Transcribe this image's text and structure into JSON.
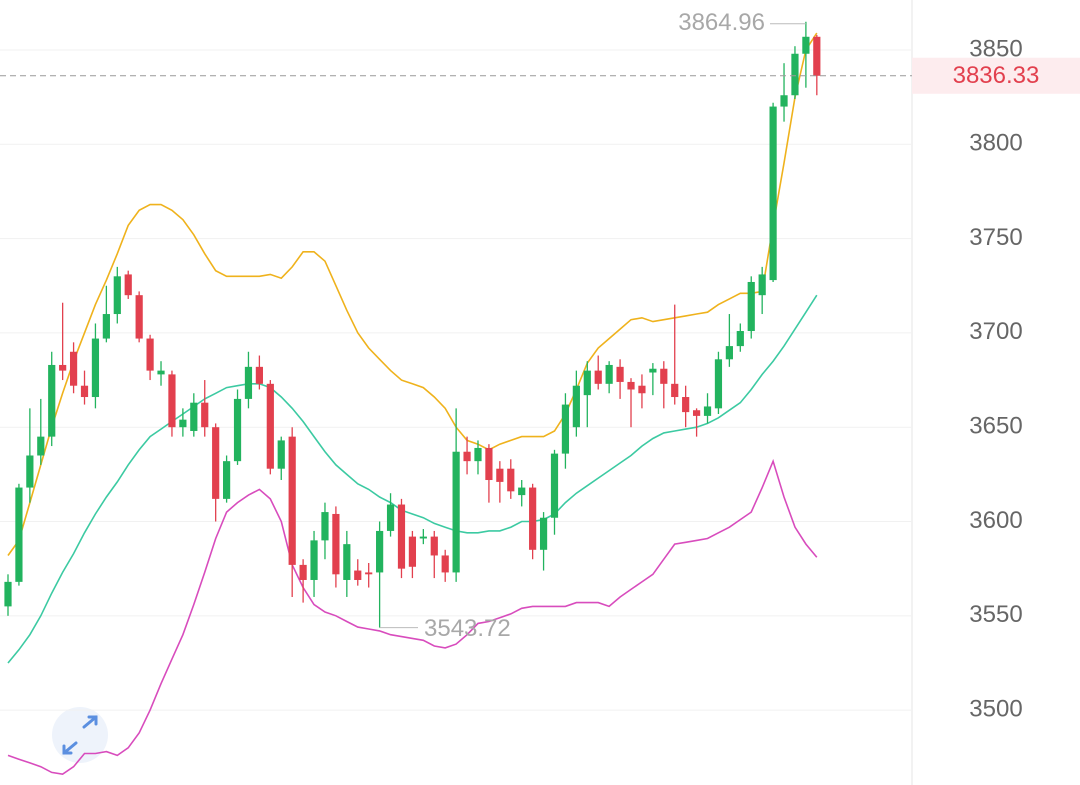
{
  "chart_data": {
    "type": "candlestick",
    "ylim": [
      3460.3,
      3876.5
    ],
    "yticks": [
      3500,
      3550,
      3600,
      3650,
      3700,
      3750,
      3800,
      3850
    ],
    "grid": true,
    "up_color": "#22b35e",
    "down_color": "#e2404e",
    "open": [
      3555,
      3568,
      3618,
      3635,
      3645,
      3683,
      3690,
      3672,
      3666,
      3697,
      3710,
      3731,
      3720,
      3697,
      3678,
      3678,
      3650,
      3648,
      3663,
      3650,
      3612,
      3632,
      3665,
      3682,
      3673,
      3628,
      3645,
      3577,
      3569,
      3590,
      3604,
      3569,
      3574,
      3573,
      3573,
      3595,
      3609,
      3592,
      3591,
      3592,
      3582,
      3573,
      3637,
      3632,
      3639,
      3628,
      3628,
      3614,
      3618,
      3585,
      3602,
      3636,
      3650,
      3667,
      3680,
      3673,
      3682,
      3674,
      3672,
      3679,
      3681,
      3673,
      3666,
      3659,
      3656,
      3660,
      3686,
      3693,
      3701,
      3720,
      3728,
      3820,
      3826,
      3848,
      3857
    ],
    "high": [
      3572,
      3620,
      3660,
      3665,
      3690,
      3716,
      3695,
      3680,
      3705,
      3725,
      3735,
      3733,
      3722,
      3699,
      3685,
      3680,
      3660,
      3668,
      3675,
      3652,
      3635,
      3670,
      3690,
      3688,
      3675,
      3645,
      3650,
      3580,
      3595,
      3610,
      3608,
      3595,
      3580,
      3578,
      3600,
      3615,
      3612,
      3595,
      3596,
      3595,
      3585,
      3660,
      3645,
      3643,
      3641,
      3632,
      3633,
      3622,
      3620,
      3605,
      3638,
      3668,
      3680,
      3685,
      3688,
      3685,
      3686,
      3676,
      3678,
      3684,
      3685,
      3715,
      3672,
      3660,
      3668,
      3690,
      3710,
      3705,
      3730,
      3735,
      3822,
      3843,
      3852,
      3864.96,
      3858
    ],
    "low": [
      3550,
      3566,
      3610,
      3630,
      3640,
      3675,
      3668,
      3662,
      3660,
      3695,
      3705,
      3718,
      3695,
      3675,
      3672,
      3645,
      3645,
      3645,
      3645,
      3600,
      3610,
      3630,
      3660,
      3670,
      3625,
      3622,
      3560,
      3557,
      3560,
      3580,
      3565,
      3560,
      3566,
      3565,
      3543.72,
      3592,
      3570,
      3570,
      3588,
      3570,
      3568,
      3568,
      3625,
      3625,
      3610,
      3610,
      3612,
      3608,
      3580,
      3574,
      3593,
      3628,
      3645,
      3650,
      3670,
      3668,
      3665,
      3650,
      3660,
      3667,
      3660,
      3662,
      3650,
      3645,
      3652,
      3657,
      3682,
      3690,
      3697,
      3710,
      3727,
      3812,
      3824,
      3830,
      3826
    ],
    "close": [
      3568,
      3618,
      3635,
      3645,
      3683,
      3680,
      3672,
      3666,
      3697,
      3710,
      3730,
      3720,
      3697,
      3680,
      3680,
      3650,
      3654,
      3663,
      3650,
      3612,
      3632,
      3665,
      3682,
      3673,
      3628,
      3643,
      3577,
      3569,
      3590,
      3605,
      3572,
      3588,
      3569,
      3572,
      3595,
      3609,
      3575,
      3576,
      3592,
      3582,
      3573,
      3637,
      3632,
      3639,
      3622,
      3621,
      3616,
      3618,
      3585,
      3602,
      3636,
      3662,
      3672,
      3680,
      3673,
      3683,
      3674,
      3670,
      3668,
      3681,
      3673,
      3666,
      3658,
      3656,
      3661,
      3686,
      3693,
      3701,
      3727,
      3731,
      3820,
      3826,
      3848,
      3857,
      3836.33
    ],
    "lines": [
      {
        "color": "#efb21c",
        "values": [
          3582,
          3590,
          3610,
          3630,
          3650,
          3668,
          3685,
          3700,
          3715,
          3728,
          3742,
          3757,
          3765,
          3768,
          3768,
          3765,
          3760,
          3752,
          3742,
          3733,
          3730,
          3730,
          3730,
          3730,
          3731,
          3729,
          3735,
          3743,
          3743,
          3738,
          3725,
          3712,
          3700,
          3692,
          3686,
          3680,
          3675,
          3673,
          3671,
          3666,
          3660,
          3650,
          3643,
          3641,
          3638,
          3641,
          3643,
          3645,
          3645,
          3645,
          3648,
          3657,
          3670,
          3684,
          3692,
          3697,
          3702,
          3707,
          3708,
          3706,
          3707,
          3708,
          3709,
          3710,
          3711,
          3715,
          3718,
          3721,
          3721,
          3722,
          3757,
          3790,
          3825,
          3850,
          3859
        ]
      },
      {
        "color": "#3ccaa2",
        "values": [
          3525,
          3532,
          3540,
          3550,
          3562,
          3573,
          3583,
          3594,
          3604,
          3613,
          3621,
          3630,
          3638,
          3645,
          3649,
          3653,
          3657,
          3661,
          3665,
          3668,
          3671,
          3672,
          3673,
          3673,
          3671,
          3666,
          3660,
          3653,
          3645,
          3637,
          3630,
          3625,
          3620,
          3617,
          3613,
          3610,
          3606,
          3604,
          3602,
          3599,
          3597,
          3595,
          3594,
          3594,
          3595,
          3595,
          3597,
          3600,
          3600,
          3601,
          3604,
          3610,
          3615,
          3619,
          3623,
          3627,
          3631,
          3635,
          3640,
          3644,
          3647,
          3648,
          3649,
          3650,
          3652,
          3655,
          3659,
          3663,
          3670,
          3678,
          3685,
          3693,
          3702,
          3711,
          3720
        ]
      },
      {
        "color": "#d84cbd",
        "values": [
          3476,
          3474,
          3472,
          3470,
          3467,
          3466,
          3470,
          3477,
          3477,
          3478,
          3476,
          3480,
          3488,
          3500,
          3514,
          3527,
          3540,
          3556,
          3573,
          3591,
          3605,
          3610,
          3614,
          3617,
          3612,
          3600,
          3577,
          3565,
          3556,
          3552,
          3550,
          3547,
          3544,
          3543,
          3542,
          3540,
          3539,
          3538,
          3537,
          3534,
          3533,
          3535,
          3540,
          3546,
          3547,
          3549,
          3551,
          3554,
          3555,
          3555,
          3555,
          3555,
          3557,
          3557,
          3557,
          3555,
          3560,
          3564,
          3568,
          3572,
          3580,
          3588,
          3589,
          3590,
          3591,
          3594,
          3597,
          3601,
          3605,
          3618,
          3632,
          3613,
          3597,
          3588,
          3581
        ]
      }
    ],
    "high_label": 3864.96,
    "low_label": 3543.72,
    "last_price": 3836.33
  }
}
